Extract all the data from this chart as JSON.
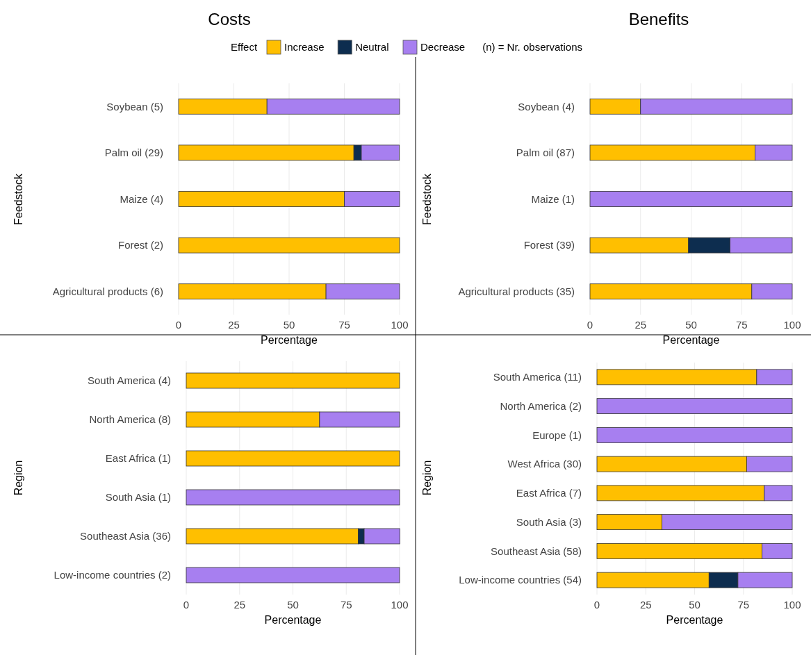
{
  "chart_data": [
    {
      "type": "bar",
      "orientation": "horizontal",
      "stacked": true,
      "title": "Costs",
      "ylabel": "Feedstock",
      "xlabel": "Percentage",
      "legend_title": "Effect",
      "legend": "top",
      "annotations": [
        "(n) = Nr. observations"
      ],
      "grid": "x",
      "xlim": [
        0,
        100
      ],
      "xticks": [
        0,
        25,
        50,
        75,
        100
      ],
      "categories": [
        "Soybean (5)",
        "Palm oil (29)",
        "Maize (4)",
        "Forest (2)",
        "Agricultural products (6)"
      ],
      "series": [
        {
          "name": "Increase",
          "color": "#ffbf00",
          "values": [
            40,
            79.3,
            75,
            100,
            66.7
          ]
        },
        {
          "name": "Neutral",
          "color": "#0d2d4f",
          "values": [
            0,
            3.4,
            0,
            0,
            0
          ]
        },
        {
          "name": "Decrease",
          "color": "#a77ff0",
          "values": [
            60,
            17.2,
            25,
            0,
            33.3
          ]
        }
      ]
    },
    {
      "type": "bar",
      "orientation": "horizontal",
      "stacked": true,
      "title": "Benefits",
      "ylabel": "Feedstock",
      "xlabel": "Percentage",
      "grid": "x",
      "xlim": [
        0,
        100
      ],
      "xticks": [
        0,
        25,
        50,
        75,
        100
      ],
      "categories": [
        "Soybean (4)",
        "Palm oil (87)",
        "Maize (1)",
        "Forest (39)",
        "Agricultural products (35)"
      ],
      "series": [
        {
          "color": "#ffbf00",
          "values": [
            25,
            81.6,
            0,
            48.7,
            80
          ]
        },
        {
          "color": "#0d2d4f",
          "values": [
            0,
            0,
            0,
            20.5,
            0
          ]
        },
        {
          "color": "#a77ff0",
          "values": [
            75,
            18.4,
            100,
            30.8,
            20
          ]
        }
      ]
    },
    {
      "type": "bar",
      "orientation": "horizontal",
      "stacked": true,
      "ylabel": "Region",
      "xlabel": "Percentage",
      "grid": "x",
      "xlim": [
        0,
        100
      ],
      "xticks": [
        0,
        25,
        50,
        75,
        100
      ],
      "categories": [
        "South America (4)",
        "North America (8)",
        "East Africa (1)",
        "South Asia (1)",
        "Southeast Asia (36)",
        "Low-income countries (2)"
      ],
      "series": [
        {
          "color": "#ffbf00",
          "values": [
            100,
            62.5,
            100,
            0,
            80.6,
            0
          ]
        },
        {
          "color": "#0d2d4f",
          "values": [
            0,
            0,
            0,
            0,
            2.8,
            0
          ]
        },
        {
          "color": "#a77ff0",
          "values": [
            0,
            37.5,
            0,
            100,
            16.7,
            100
          ]
        }
      ]
    },
    {
      "type": "bar",
      "orientation": "horizontal",
      "stacked": true,
      "ylabel": "Region",
      "xlabel": "Percentage",
      "grid": "x",
      "xlim": [
        0,
        100
      ],
      "xticks": [
        0,
        25,
        50,
        75,
        100
      ],
      "categories": [
        "South America (11)",
        "North America (2)",
        "Europe (1)",
        "West Africa (30)",
        "East Africa (7)",
        "South Asia (3)",
        "Southeast Asia (58)",
        "Low-income countries (54)"
      ],
      "series": [
        {
          "color": "#ffbf00",
          "values": [
            81.8,
            0,
            0,
            76.7,
            85.7,
            33.3,
            84.5,
            57.4
          ]
        },
        {
          "color": "#0d2d4f",
          "values": [
            0,
            0,
            0,
            0,
            0,
            0,
            0,
            14.8
          ]
        },
        {
          "color": "#a77ff0",
          "values": [
            18.2,
            100,
            100,
            23.3,
            14.3,
            66.7,
            15.5,
            27.8
          ]
        }
      ]
    }
  ]
}
